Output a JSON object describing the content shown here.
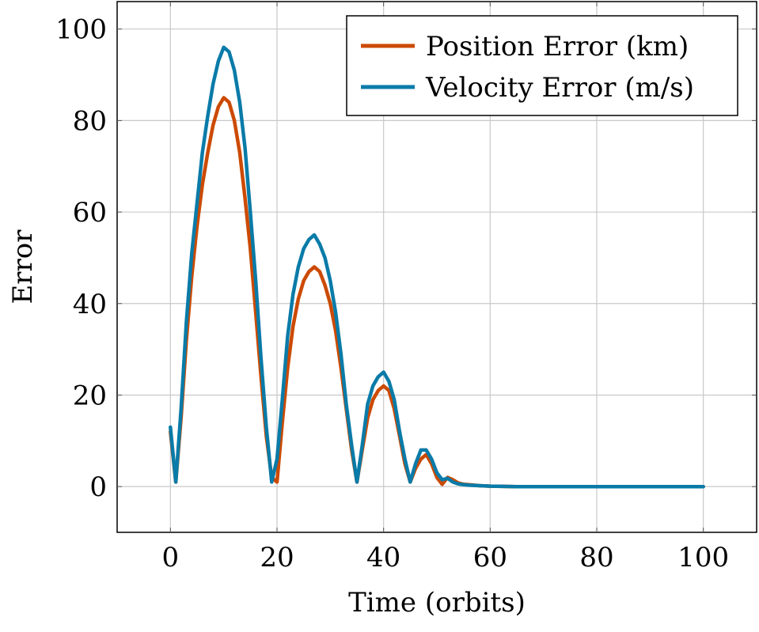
{
  "chart_data": {
    "type": "line",
    "xlabel": "Time (orbits)",
    "ylabel": "Error",
    "xlim": [
      -10,
      110
    ],
    "ylim": [
      -10,
      106
    ],
    "xticks": [
      0,
      20,
      40,
      60,
      80,
      100
    ],
    "yticks": [
      0,
      20,
      40,
      60,
      80,
      100
    ],
    "xtick_labels": [
      "0",
      "20",
      "40",
      "60",
      "80",
      "100"
    ],
    "ytick_labels": [
      "0",
      "20",
      "40",
      "60",
      "80",
      "100"
    ],
    "grid": true,
    "legend": {
      "position": "top-right"
    },
    "series": [
      {
        "name": "Position Error (km)",
        "color": "#cc4a00",
        "x": [
          0,
          1,
          2,
          3,
          4,
          5,
          6,
          7,
          8,
          9,
          10,
          11,
          12,
          13,
          14,
          15,
          16,
          17,
          18,
          19,
          20,
          21,
          22,
          23,
          24,
          25,
          26,
          27,
          28,
          29,
          30,
          31,
          32,
          33,
          34,
          35,
          36,
          37,
          38,
          39,
          40,
          41,
          42,
          43,
          44,
          45,
          46,
          47,
          48,
          49,
          50,
          51,
          52,
          53,
          54,
          55,
          56,
          58,
          60,
          65,
          70,
          80,
          90,
          100
        ],
        "y": [
          12,
          1,
          15,
          32,
          46,
          57,
          66,
          73,
          79,
          83,
          85,
          84,
          80,
          73,
          63,
          52,
          38,
          24,
          11,
          2,
          1,
          14,
          26,
          35,
          41,
          45,
          47,
          48,
          47,
          44,
          40,
          34,
          26,
          17,
          8,
          1,
          8,
          15,
          19,
          21,
          22,
          21,
          17,
          11,
          5,
          1,
          4,
          6,
          7,
          5,
          2,
          0.5,
          2,
          1.5,
          0.8,
          0.5,
          0.4,
          0.2,
          0.1,
          0,
          0,
          0,
          0,
          0
        ]
      },
      {
        "name": "Velocity Error (m/s)",
        "color": "#0a7ba8",
        "x": [
          0,
          1,
          2,
          3,
          4,
          5,
          6,
          7,
          8,
          9,
          10,
          11,
          12,
          13,
          14,
          15,
          16,
          17,
          18,
          19,
          20,
          21,
          22,
          23,
          24,
          25,
          26,
          27,
          28,
          29,
          30,
          31,
          32,
          33,
          34,
          35,
          36,
          37,
          38,
          39,
          40,
          41,
          42,
          43,
          44,
          45,
          46,
          47,
          48,
          49,
          50,
          51,
          52,
          53,
          54,
          55,
          56,
          58,
          60,
          65,
          70,
          80,
          90,
          100
        ],
        "y": [
          13,
          1,
          17,
          36,
          51,
          62,
          73,
          81,
          88,
          93,
          96,
          95,
          91,
          84,
          74,
          60,
          45,
          28,
          13,
          1,
          6,
          19,
          33,
          42,
          48,
          52,
          54,
          55,
          53,
          50,
          45,
          38,
          29,
          18,
          9,
          1,
          9,
          18,
          22,
          24,
          25,
          23,
          19,
          12,
          6,
          1,
          5,
          8,
          8,
          6,
          3,
          1.5,
          1.8,
          1,
          0.6,
          0.4,
          0.3,
          0.2,
          0.1,
          0,
          0,
          0,
          0,
          0
        ]
      }
    ]
  }
}
